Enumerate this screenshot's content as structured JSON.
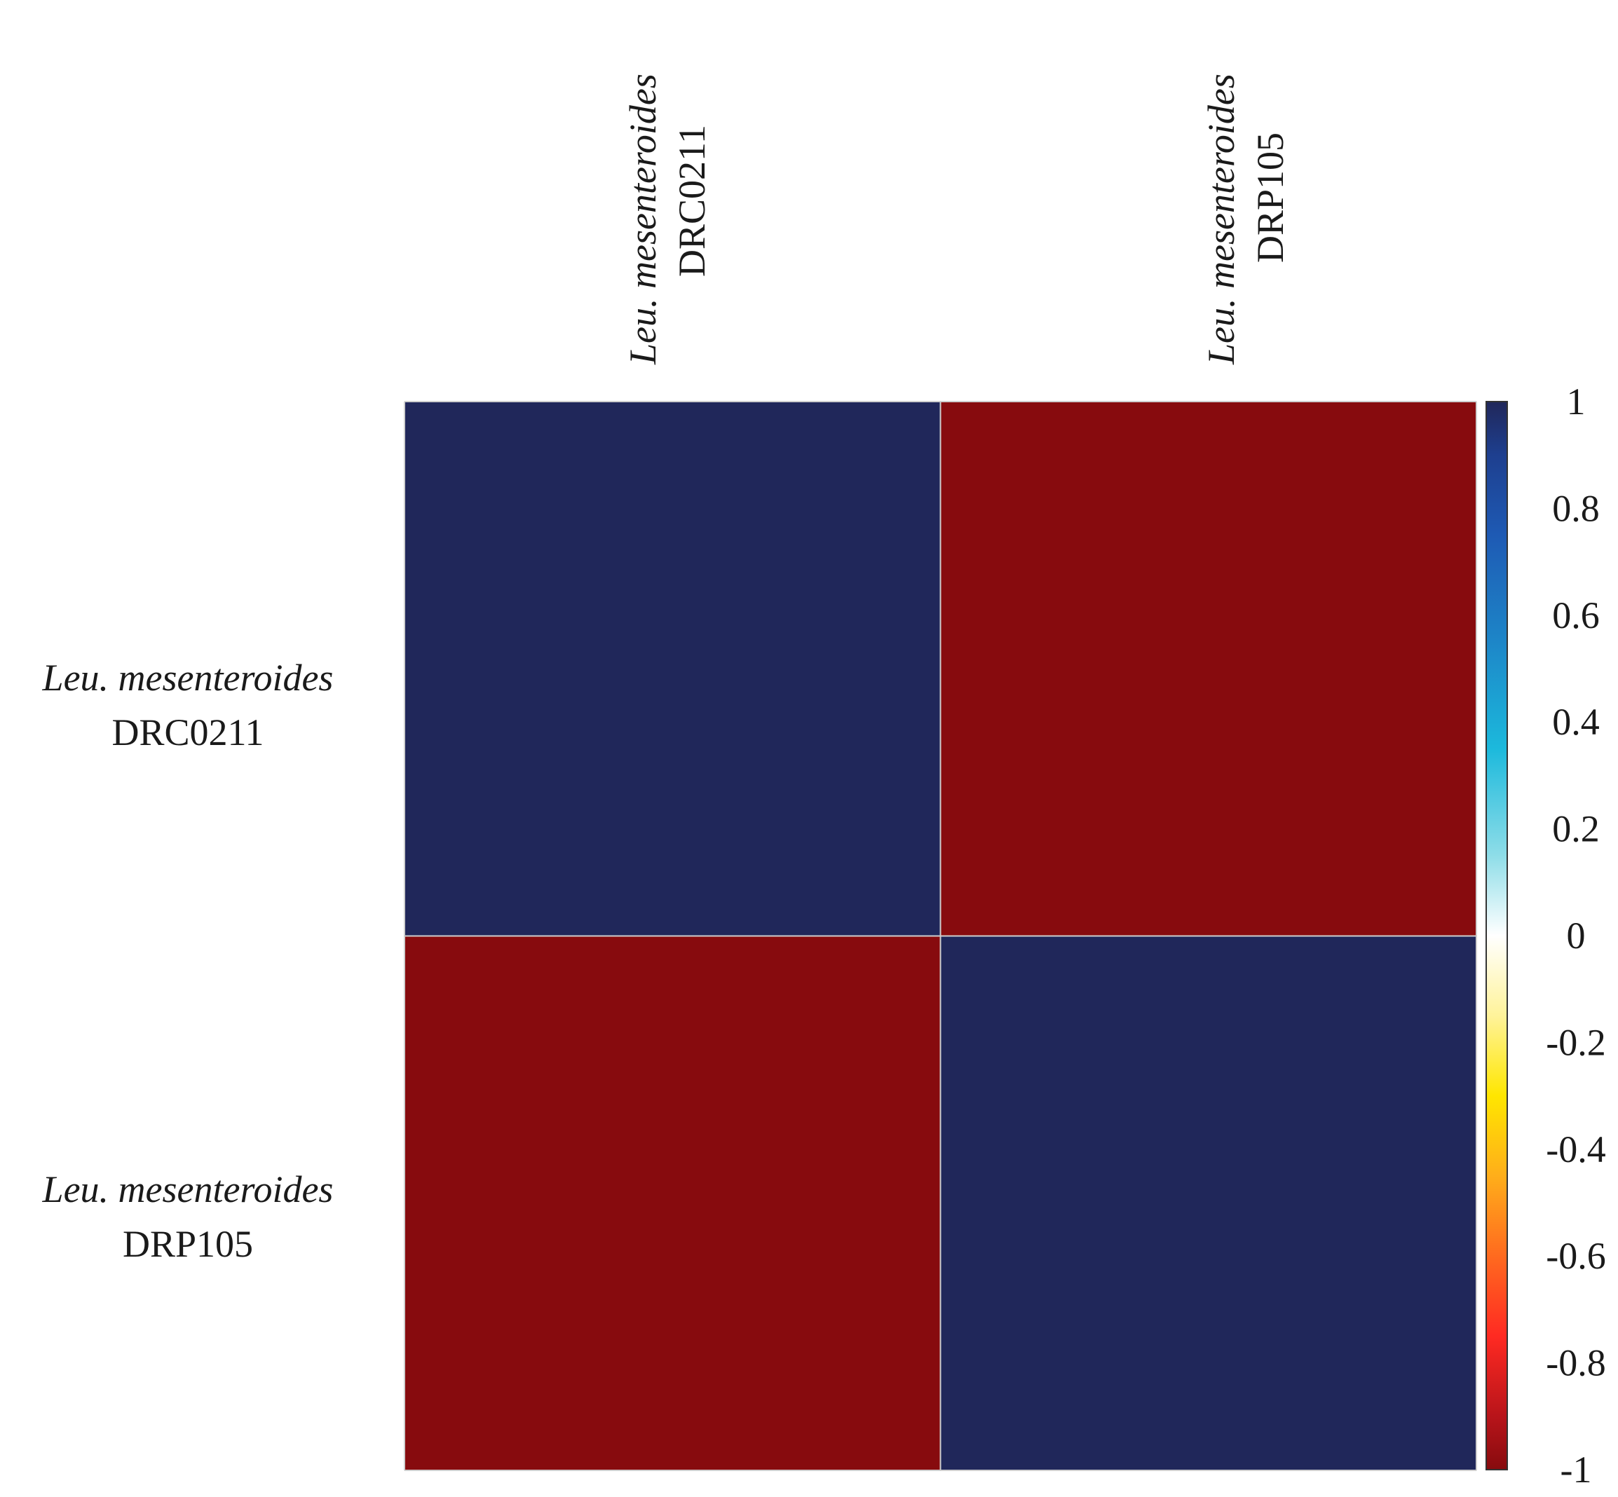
{
  "chart_data": {
    "type": "heatmap",
    "title": "",
    "rows": [
      {
        "genus": "Leu. mesenteroides",
        "strain": "DRC0211"
      },
      {
        "genus": "Leu. mesenteroides",
        "strain": "DRP105"
      }
    ],
    "columns": [
      {
        "genus": "Leu. mesenteroides",
        "strain": "DRC0211"
      },
      {
        "genus": "Leu. mesenteroides",
        "strain": "DRP105"
      }
    ],
    "values": [
      [
        1,
        -1
      ],
      [
        -1,
        1
      ]
    ],
    "colorbar": {
      "range": [
        -1,
        1
      ],
      "ticks": [
        "1",
        "0.8",
        "0.6",
        "0.4",
        "0.2",
        "0",
        "-0.2",
        "-0.4",
        "-0.6",
        "-0.8",
        "-1"
      ],
      "tick_values": [
        1,
        0.8,
        0.6,
        0.4,
        0.2,
        0,
        -0.2,
        -0.4,
        -0.6,
        -0.8,
        -1
      ],
      "stops": [
        {
          "value": 1.0,
          "color": "#20275a"
        },
        {
          "value": 0.9,
          "color": "#1e3f8f"
        },
        {
          "value": 0.75,
          "color": "#1e5ab4"
        },
        {
          "value": 0.55,
          "color": "#1d86c8"
        },
        {
          "value": 0.35,
          "color": "#1cb9dc"
        },
        {
          "value": 0.15,
          "color": "#8edde8"
        },
        {
          "value": 0.0,
          "color": "#ffffff"
        },
        {
          "value": -0.15,
          "color": "#fff39a"
        },
        {
          "value": -0.3,
          "color": "#ffe600"
        },
        {
          "value": -0.45,
          "color": "#ffae1a"
        },
        {
          "value": -0.6,
          "color": "#ff6a1f"
        },
        {
          "value": -0.75,
          "color": "#ff2a22"
        },
        {
          "value": -0.9,
          "color": "#b8141a"
        },
        {
          "value": -1.0,
          "color": "#870b0e"
        }
      ]
    },
    "colors": {
      "positive": "#20275a",
      "negative": "#870b0e",
      "gridline": "#cfcfcf",
      "text": "#1a1a1a"
    }
  }
}
